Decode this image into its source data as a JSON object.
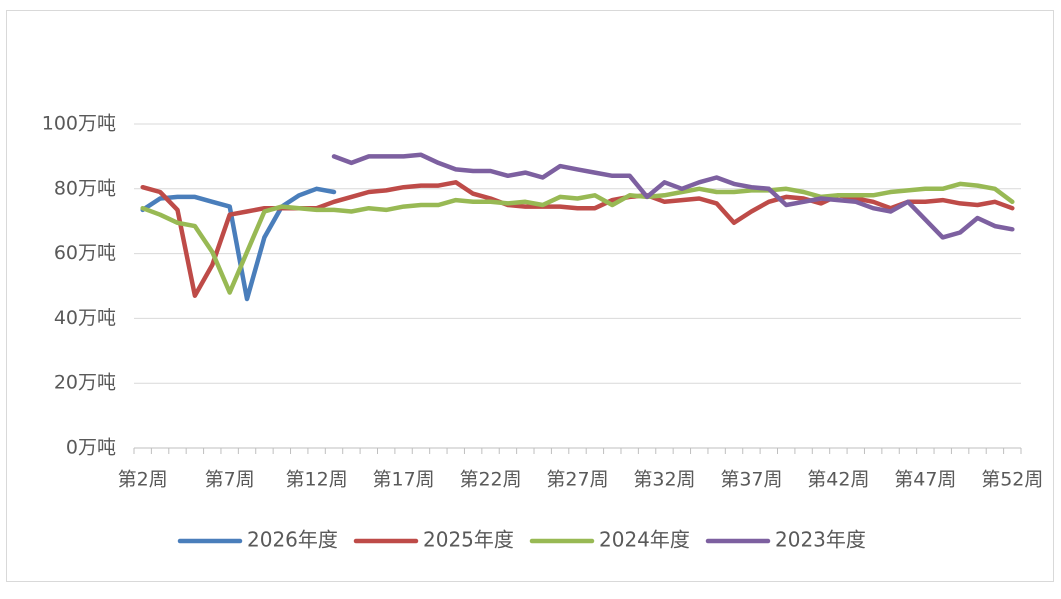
{
  "chart_data": {
    "type": "line",
    "categories": [
      "第2周",
      null,
      null,
      null,
      null,
      "第7周",
      null,
      null,
      null,
      null,
      "第12周",
      null,
      null,
      null,
      null,
      "第17周",
      null,
      null,
      null,
      null,
      "第22周",
      null,
      null,
      null,
      null,
      "第27周",
      null,
      null,
      null,
      null,
      "第32周",
      null,
      null,
      null,
      null,
      "第37周",
      null,
      null,
      null,
      null,
      "第42周",
      null,
      null,
      null,
      null,
      "第47周",
      null,
      null,
      null,
      null,
      "第52周"
    ],
    "series": [
      {
        "name": "2026年度",
        "color": "#4a7ebb",
        "values": [
          73.5,
          77,
          77.5,
          77.5,
          76,
          74.5,
          46,
          65,
          74.5,
          78,
          80,
          79,
          null,
          null,
          null,
          null,
          null,
          null,
          null,
          null,
          null,
          null,
          null,
          null,
          null,
          null,
          null,
          null,
          null,
          null,
          null,
          null,
          null,
          null,
          null,
          null,
          null,
          null,
          null,
          null,
          null,
          null,
          null,
          null,
          null,
          null,
          null,
          null,
          null,
          null,
          null
        ]
      },
      {
        "name": "2025年度",
        "color": "#be4b48",
        "values": [
          80.5,
          79,
          73.5,
          47,
          56.5,
          72,
          73,
          74,
          74,
          74,
          74,
          76,
          77.5,
          79,
          79.5,
          80.5,
          81,
          81,
          82,
          78.5,
          77,
          75,
          74.5,
          74.5,
          74.5,
          74,
          74,
          76.5,
          77.5,
          78,
          76,
          76.5,
          77,
          75.5,
          69.5,
          73,
          76,
          77.5,
          77,
          75.5,
          78,
          77,
          76,
          74,
          76,
          76,
          76.5,
          75.5,
          75,
          76,
          74
        ]
      },
      {
        "name": "2024年度",
        "color": "#98b954",
        "values": [
          74,
          72,
          69.5,
          68.5,
          60.5,
          48,
          60.5,
          73,
          74.5,
          74,
          73.5,
          73.5,
          73,
          74,
          73.5,
          74.5,
          75,
          75,
          76.5,
          76,
          76,
          75.5,
          76,
          75,
          77.5,
          77,
          78,
          75,
          78,
          77.5,
          78,
          79,
          80,
          79,
          79,
          79.5,
          79.5,
          80,
          79,
          77.5,
          78,
          78,
          78,
          79,
          79.5,
          80,
          80,
          81.5,
          81,
          80,
          76
        ]
      },
      {
        "name": "2023年度",
        "color": "#7d60a0",
        "values": [
          null,
          null,
          null,
          null,
          null,
          null,
          null,
          null,
          null,
          null,
          null,
          90,
          88,
          90,
          90,
          90,
          90.5,
          88,
          86,
          85.5,
          85.5,
          84,
          85,
          83.5,
          87,
          86,
          85,
          84,
          84,
          77.5,
          82,
          80,
          82,
          83.5,
          81.5,
          80.5,
          80,
          75,
          76,
          77,
          76.5,
          76,
          74,
          73,
          76,
          70.5,
          65,
          66.5,
          71,
          68.5,
          67.5
        ]
      }
    ],
    "ylim": [
      0,
      100
    ],
    "yticks": [
      {
        "value": 0,
        "label": "0万吨"
      },
      {
        "value": 20,
        "label": "20万吨"
      },
      {
        "value": 40,
        "label": "40万吨"
      },
      {
        "value": 60,
        "label": "60万吨"
      },
      {
        "value": 80,
        "label": "80万吨"
      },
      {
        "value": 100,
        "label": "100万吨"
      }
    ],
    "grid": true,
    "legend": "bottom"
  }
}
